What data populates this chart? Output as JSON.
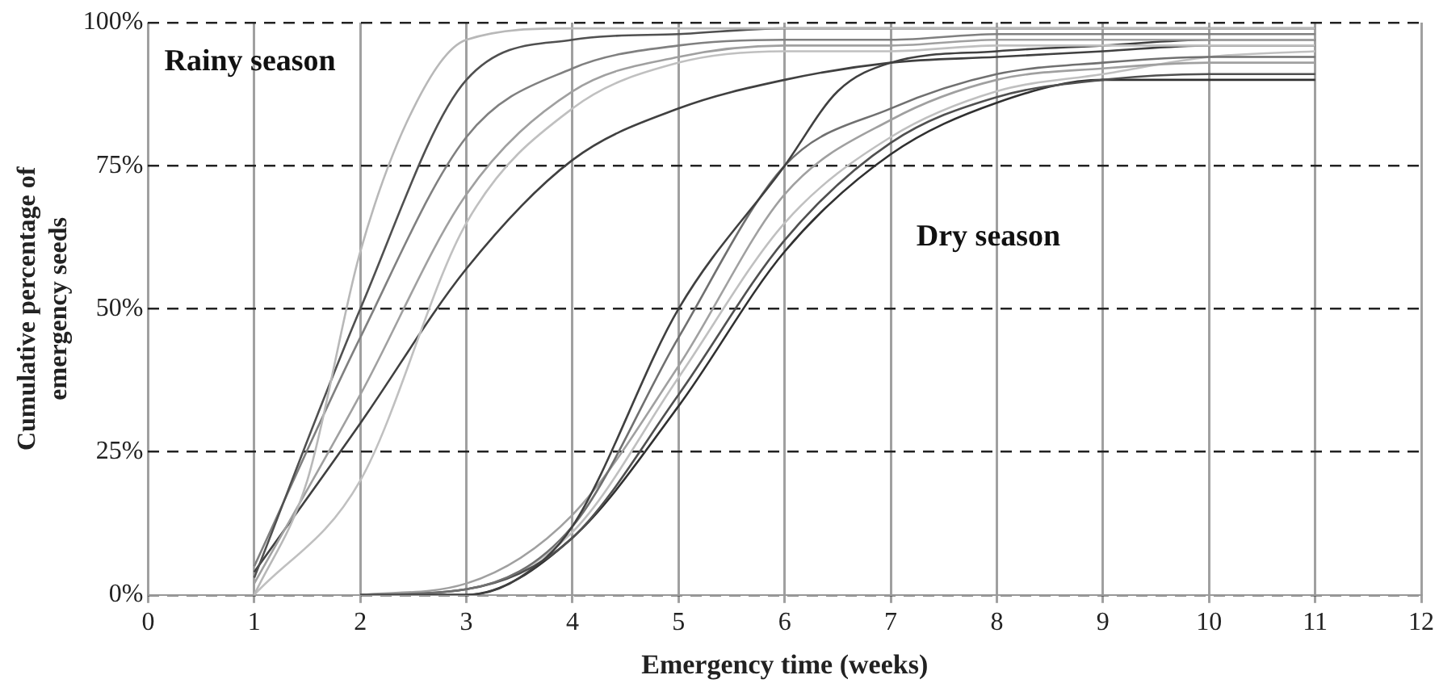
{
  "chart_data": {
    "type": "line",
    "xlabel": "Emergency time (weeks)",
    "ylabel": "Cumulative percentage of\nemergency seeds",
    "xlim": [
      0,
      12
    ],
    "xticks": [
      0,
      1,
      2,
      3,
      4,
      5,
      6,
      7,
      8,
      9,
      10,
      11,
      12
    ],
    "ylim": [
      0,
      100
    ],
    "yticks": [
      {
        "value": 0,
        "label": "0%"
      },
      {
        "value": 25,
        "label": "25%"
      },
      {
        "value": 50,
        "label": "50%"
      },
      {
        "value": 75,
        "label": "75%"
      },
      {
        "value": 100,
        "label": "100%"
      }
    ],
    "grid": true,
    "legend": false,
    "marker": "none",
    "annotations": [
      "Rainy season",
      "Dry season"
    ],
    "series": [
      {
        "color": "#b8b8b8",
        "x": [
          1,
          1.5,
          2,
          2.5,
          3,
          4,
          5,
          6,
          7,
          8,
          9,
          10,
          11
        ],
        "values": [
          0,
          20,
          60,
          85,
          97,
          99,
          99,
          99,
          99,
          99,
          99,
          99,
          99
        ]
      },
      {
        "color": "#505050",
        "x": [
          1,
          2,
          3,
          4,
          5,
          6,
          7,
          8,
          9,
          10,
          11
        ],
        "values": [
          3,
          50,
          90,
          97,
          98,
          99,
          99,
          99,
          99,
          99,
          99
        ]
      },
      {
        "color": "#808080",
        "x": [
          1,
          2,
          3,
          4,
          5,
          6,
          7,
          8,
          9,
          10,
          11
        ],
        "values": [
          5,
          45,
          80,
          92,
          96,
          97,
          97,
          98,
          98,
          98,
          98
        ]
      },
      {
        "color": "#a0a0a0",
        "x": [
          1,
          2,
          3,
          4,
          5,
          6,
          7,
          8,
          9,
          10,
          11
        ],
        "values": [
          2,
          35,
          70,
          88,
          94,
          96,
          96,
          97,
          97,
          97,
          97
        ]
      },
      {
        "color": "#c0c0c0",
        "x": [
          1,
          2,
          3,
          4,
          5,
          6,
          7,
          8,
          9,
          10,
          11
        ],
        "values": [
          0,
          20,
          65,
          85,
          93,
          95,
          95,
          96,
          96,
          96,
          96
        ]
      },
      {
        "color": "#404040",
        "x": [
          1,
          2,
          3,
          4,
          5,
          6,
          7,
          8,
          9,
          10,
          11
        ],
        "values": [
          4,
          30,
          57,
          76,
          85,
          90,
          93,
          94,
          95,
          96,
          96
        ]
      },
      {
        "color": "#404040",
        "x": [
          2,
          3,
          3.5,
          4,
          5,
          6,
          6.5,
          7,
          8,
          9,
          10,
          11
        ],
        "values": [
          0,
          0,
          3,
          12,
          50,
          75,
          88,
          93,
          95,
          96,
          97,
          97
        ]
      },
      {
        "color": "#707070",
        "x": [
          2,
          3,
          4,
          5,
          6,
          7,
          8,
          9,
          10,
          11
        ],
        "values": [
          0,
          1,
          12,
          45,
          75,
          85,
          91,
          93,
          94,
          94
        ]
      },
      {
        "color": "#a0a0a0",
        "x": [
          2,
          3,
          4,
          5,
          6,
          7,
          8,
          9,
          10,
          11
        ],
        "values": [
          0,
          2,
          14,
          40,
          70,
          83,
          90,
          92,
          93,
          93
        ]
      },
      {
        "color": "#505050",
        "x": [
          2,
          3,
          4,
          5,
          6,
          7,
          8,
          9,
          10,
          11
        ],
        "values": [
          0,
          1,
          10,
          35,
          62,
          79,
          87,
          90,
          91,
          91
        ]
      },
      {
        "color": "#303030",
        "x": [
          2,
          3,
          4,
          5,
          6,
          7,
          8,
          9,
          10,
          11
        ],
        "values": [
          0,
          0,
          10,
          33,
          60,
          77,
          86,
          90,
          90,
          90
        ]
      },
      {
        "color": "#c0c0c0",
        "x": [
          2,
          3,
          4,
          5,
          6,
          7,
          8,
          9,
          10,
          11
        ],
        "values": [
          0,
          1,
          11,
          38,
          65,
          80,
          88,
          91,
          94,
          95
        ]
      }
    ]
  }
}
